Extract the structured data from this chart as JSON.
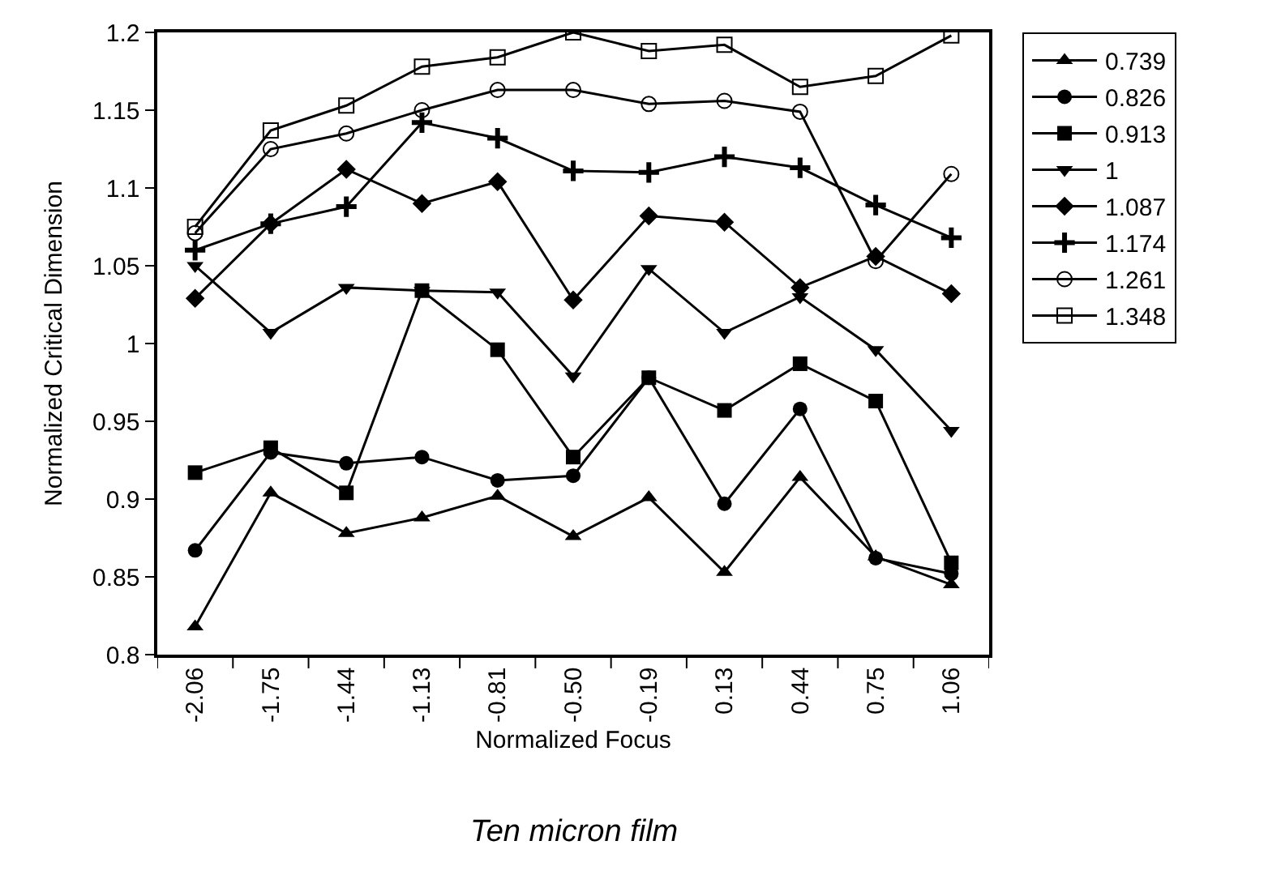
{
  "chart_data": {
    "type": "line",
    "title": "Ten micron film",
    "xlabel": "Normalized Focus",
    "ylabel": "Normalized Critical Dimension",
    "categories": [
      "-2.06",
      "-1.75",
      "-1.44",
      "-1.13",
      "-0.81",
      "-0.50",
      "-0.19",
      "0.13",
      "0.44",
      "0.75",
      "1.06"
    ],
    "ylim": [
      0.8,
      1.2
    ],
    "yticks": [
      0.8,
      0.85,
      0.9,
      0.95,
      1,
      1.05,
      1.1,
      1.15,
      1.2
    ],
    "legend": "right",
    "line_style": "solid",
    "series": [
      {
        "name": "0.739",
        "color": "#000000",
        "marker": "triangle",
        "values": [
          0.818,
          0.904,
          0.878,
          0.888,
          0.902,
          0.876,
          0.901,
          0.853,
          0.914,
          0.863,
          0.845
        ]
      },
      {
        "name": "0.826",
        "color": "#000000",
        "marker": "circle",
        "values": [
          0.867,
          0.93,
          0.923,
          0.927,
          0.912,
          0.915,
          0.978,
          0.897,
          0.958,
          0.862,
          0.852
        ]
      },
      {
        "name": "0.913",
        "color": "#000000",
        "marker": "square",
        "values": [
          0.917,
          0.933,
          0.904,
          1.034,
          0.996,
          0.927,
          0.978,
          0.957,
          0.987,
          0.963,
          0.859
        ]
      },
      {
        "name": "1",
        "color": "#000000",
        "marker": "triangle-down",
        "values": [
          1.05,
          1.007,
          1.036,
          1.034,
          1.033,
          0.979,
          1.048,
          1.007,
          1.03,
          0.996,
          0.944
        ]
      },
      {
        "name": "1.087",
        "color": "#000000",
        "marker": "diamond",
        "values": [
          1.029,
          1.077,
          1.112,
          1.09,
          1.104,
          1.028,
          1.082,
          1.078,
          1.036,
          1.056,
          1.032
        ]
      },
      {
        "name": "1.174",
        "color": "#000000",
        "marker": "cross",
        "values": [
          1.06,
          1.077,
          1.088,
          1.142,
          1.132,
          1.111,
          1.11,
          1.12,
          1.113,
          1.089,
          1.068
        ]
      },
      {
        "name": "1.261",
        "color": "#000000",
        "marker": "circle-open",
        "values": [
          1.071,
          1.125,
          1.135,
          1.15,
          1.163,
          1.163,
          1.154,
          1.156,
          1.149,
          1.053,
          1.109
        ]
      },
      {
        "name": "1.348",
        "color": "#000000",
        "marker": "square-open",
        "values": [
          1.075,
          1.137,
          1.153,
          1.178,
          1.184,
          1.2,
          1.188,
          1.192,
          1.165,
          1.172,
          1.198
        ]
      }
    ]
  }
}
